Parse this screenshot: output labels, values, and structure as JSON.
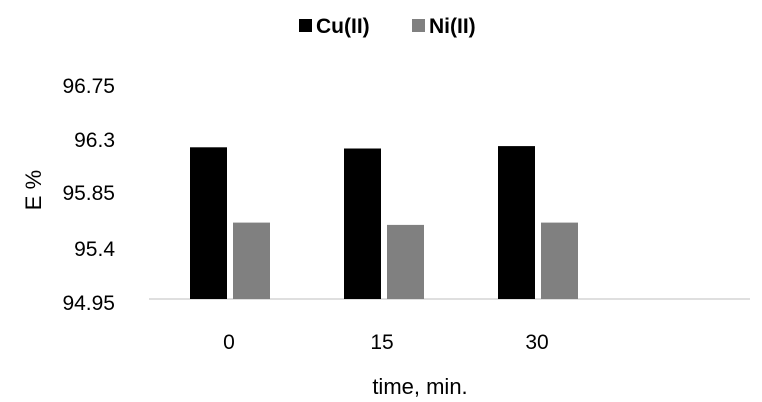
{
  "chart_data": {
    "type": "bar",
    "categories": [
      "0",
      "15",
      "30"
    ],
    "series": [
      {
        "name": "Cu(II)",
        "values": [
          96.22,
          96.21,
          96.23
        ],
        "color": "#000000"
      },
      {
        "name": "Ni(II)",
        "values": [
          95.59,
          95.57,
          95.59
        ],
        "color": "#808080"
      }
    ],
    "title": "",
    "xlabel": "time, min.",
    "ylabel": "E %",
    "ylim": [
      94.95,
      96.75
    ],
    "yticks": [
      "96.75",
      "96.3",
      "95.85",
      "95.4",
      "94.95"
    ],
    "grid": false,
    "legend_position": "top"
  }
}
